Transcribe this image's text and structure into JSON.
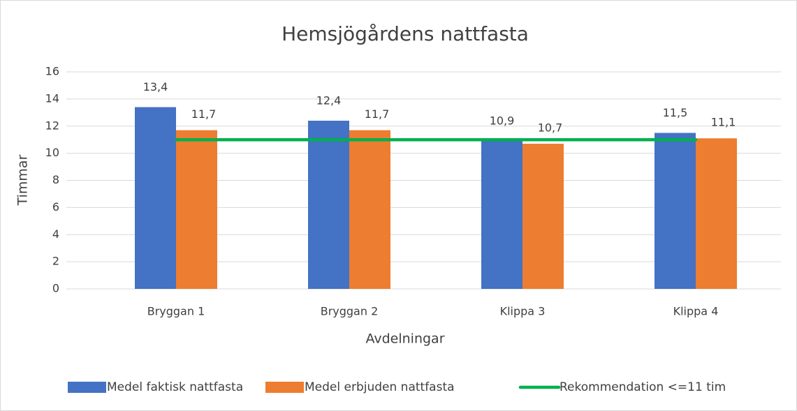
{
  "chart_data": {
    "type": "bar",
    "title": "Hemsjögårdens nattfasta",
    "x_label": "Avdelningar",
    "y_label": "Timmar",
    "categories": [
      "Bryggan 1",
      "Bryggan 2",
      "Klippa 3",
      "Klippa 4"
    ],
    "series": [
      {
        "name": "Medel faktisk nattfasta",
        "color": "#4472c4",
        "type": "bar",
        "values": [
          13.4,
          12.4,
          10.9,
          11.5
        ],
        "value_labels": [
          "13,4",
          "12,4",
          "10,9",
          "11,5"
        ]
      },
      {
        "name": "Medel erbjuden nattfasta",
        "color": "#ed7d31",
        "type": "bar",
        "values": [
          11.7,
          11.7,
          10.7,
          11.1
        ],
        "value_labels": [
          "11,7",
          "11,7",
          "10,7",
          "11,1"
        ]
      },
      {
        "name": "Rekommendation <=11 tim",
        "color": "#00b050",
        "type": "line",
        "values": [
          11,
          11,
          11,
          11
        ]
      }
    ],
    "ylim": [
      0,
      16
    ],
    "yticks": [
      0,
      2,
      4,
      6,
      8,
      10,
      12,
      14,
      16
    ],
    "grid": true,
    "legend": "bottom"
  }
}
